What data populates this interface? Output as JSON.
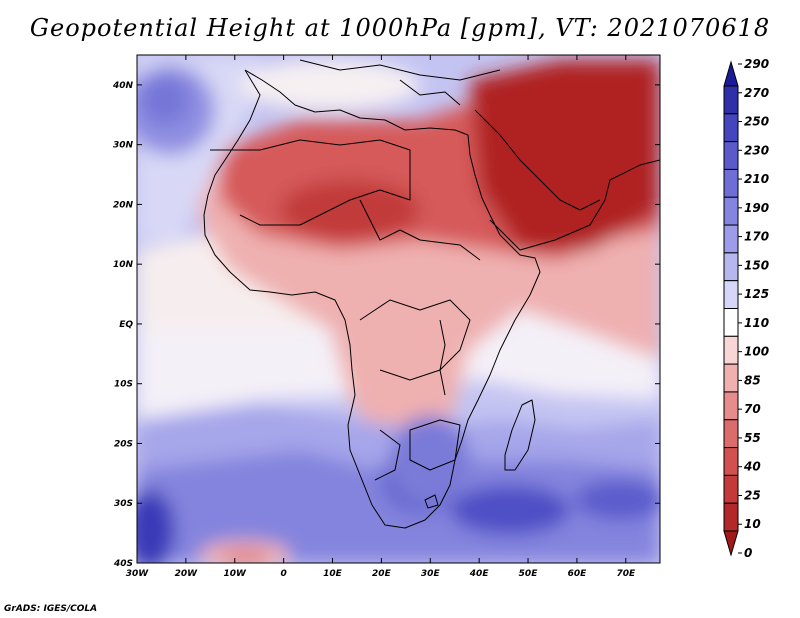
{
  "title": "Geopotential Height at 1000hPa [gpm], VT: 2021070618",
  "credit": "GrADS: IGES/COLA",
  "map": {
    "lat_labels": [
      "40N",
      "30N",
      "20N",
      "10N",
      "EQ",
      "10S",
      "20S",
      "30S",
      "40S"
    ],
    "lon_labels": [
      "30W",
      "20W",
      "10W",
      "0",
      "10E",
      "20E",
      "30E",
      "40E",
      "50E",
      "60E",
      "70E"
    ],
    "lat_range": [
      -40,
      45
    ],
    "lon_range": [
      -30,
      77
    ]
  },
  "colorbar": {
    "levels": [
      "290",
      "270",
      "250",
      "230",
      "210",
      "190",
      "170",
      "150",
      "125",
      "110",
      "100",
      "85",
      "70",
      "55",
      "40",
      "25",
      "10",
      "0"
    ],
    "colors": [
      "#1a1a9a",
      "#2f2faa",
      "#4545bd",
      "#5a5acb",
      "#6e6ed6",
      "#8585e0",
      "#9c9ce8",
      "#b7b7f0",
      "#d6d6f8",
      "#ffffff",
      "#f8d6d6",
      "#f0b0b0",
      "#e68c8c",
      "#dc6c6c",
      "#d25050",
      "#c43a3a",
      "#b32828",
      "#a01a1a"
    ]
  }
}
